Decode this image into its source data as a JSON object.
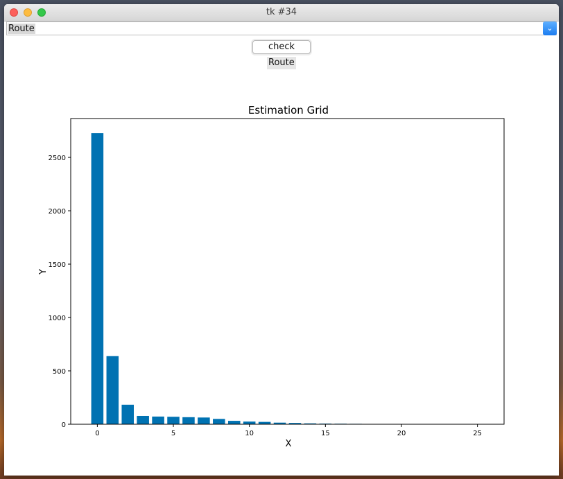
{
  "window": {
    "title": "tk #34"
  },
  "combobox": {
    "value": "Route"
  },
  "button": {
    "label": "check"
  },
  "label": {
    "text": "Route"
  },
  "chart_data": {
    "type": "bar",
    "title": "Estimation Grid",
    "xlabel": "X",
    "ylabel": "Y",
    "x": [
      0,
      1,
      2,
      3,
      4,
      5,
      6,
      7,
      8,
      9,
      10,
      11,
      12,
      13,
      14,
      15,
      16,
      17,
      18,
      19,
      20,
      21,
      22,
      23,
      24,
      25
    ],
    "values": [
      2727,
      638,
      183,
      78,
      72,
      70,
      66,
      63,
      50,
      32,
      25,
      22,
      15,
      12,
      8,
      6,
      5,
      4,
      2,
      1,
      1,
      1,
      0,
      0,
      0,
      0
    ],
    "xlim": [
      -1.75,
      26.75
    ],
    "ylim": [
      0,
      2864
    ],
    "xticks": [
      0,
      5,
      10,
      15,
      20,
      25
    ],
    "yticks": [
      0,
      500,
      1000,
      1500,
      2000,
      2500
    ],
    "bar_color": "#0072b2",
    "grid": false
  }
}
